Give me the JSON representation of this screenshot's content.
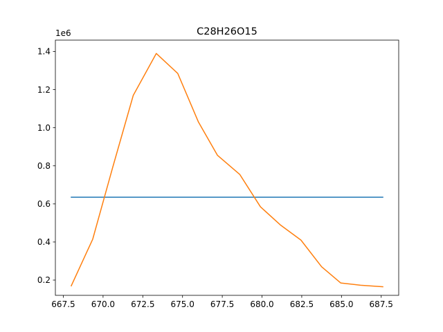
{
  "chart_data": {
    "type": "line",
    "title": "C28H26O15",
    "xlabel": "",
    "ylabel": "",
    "y_offset_label": "1e6",
    "xlim": [
      667.0,
      688.6
    ],
    "ylim": [
      0.12,
      1.46
    ],
    "grid": false,
    "x_ticks": [
      667.5,
      670.0,
      672.5,
      675.0,
      677.5,
      680.0,
      682.5,
      685.0,
      687.5
    ],
    "x_tick_labels": [
      "667.5",
      "670.0",
      "672.5",
      "675.0",
      "677.5",
      "680.0",
      "682.5",
      "685.0",
      "687.5"
    ],
    "y_ticks": [
      0.2,
      0.4,
      0.6,
      0.8,
      1.0,
      1.2,
      1.4
    ],
    "y_tick_labels": [
      "0.2",
      "0.4",
      "0.6",
      "0.8",
      "1.0",
      "1.2",
      "1.4"
    ],
    "series": [
      {
        "color": "#1f77b4",
        "x": [
          668.0,
          687.6
        ],
        "y": [
          0.635,
          0.635
        ]
      },
      {
        "color": "#ff7f0e",
        "x": [
          668.0,
          669.35,
          670.6,
          671.9,
          673.35,
          674.7,
          676.0,
          677.2,
          678.6,
          679.9,
          681.15,
          682.45,
          683.75,
          684.95,
          686.2,
          687.6
        ],
        "y": [
          0.17,
          0.415,
          0.79,
          1.17,
          1.39,
          1.285,
          1.03,
          0.855,
          0.755,
          0.585,
          0.49,
          0.41,
          0.27,
          0.185,
          0.173,
          0.165
        ]
      }
    ]
  }
}
